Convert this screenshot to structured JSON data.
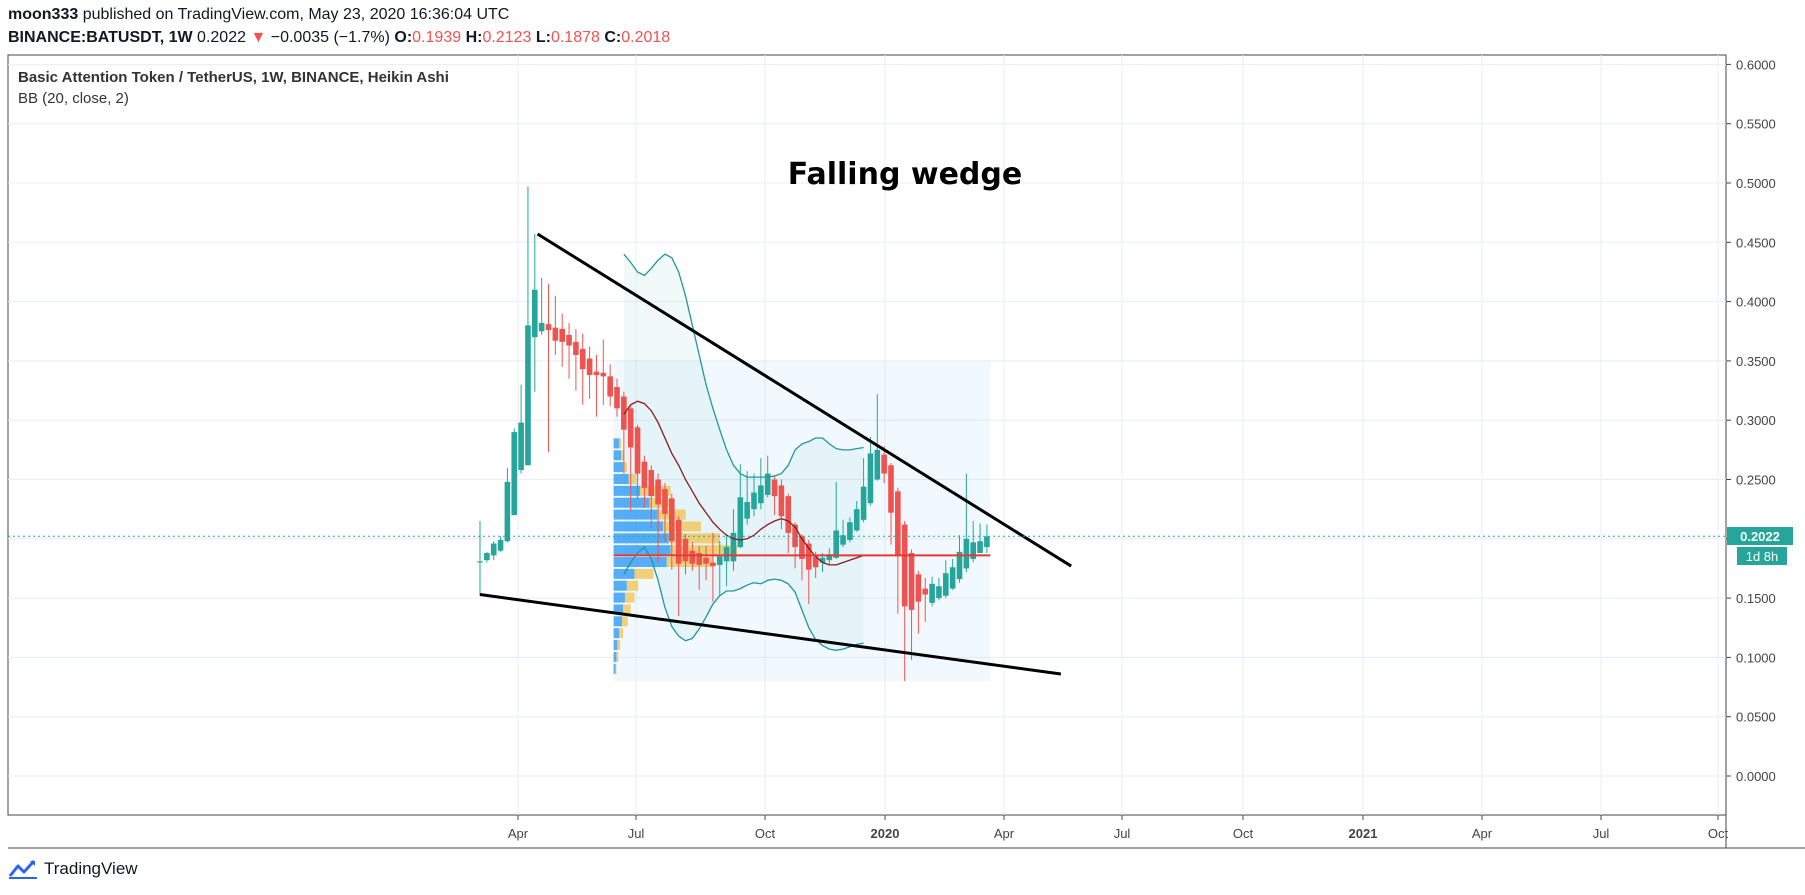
{
  "header": {
    "publisher": "moon333",
    "published_text": "published on TradingView.com, May 23, 2020 16:36:04 UTC",
    "symbol": "BINANCE:BATUSDT, 1W",
    "last": "0.2022",
    "change_arrow": "▼",
    "change": "−0.0035 (−1.7%)",
    "o_label": "O:",
    "o_value": "0.1939",
    "h_label": "H:",
    "h_value": "0.2123",
    "l_label": "L:",
    "l_value": "0.1878",
    "c_label": "C:",
    "c_value": "0.2018"
  },
  "legend": {
    "title": "Basic Attention Token / TetherUS, 1W, BINANCE, Heikin Ashi",
    "indicator": "BB (20, close, 2)"
  },
  "annotation": "Falling wedge",
  "price_label": "0.2022",
  "countdown_label": "1d 8h",
  "footer": {
    "brand": "TradingView",
    "logo_icon": "tradingview-logo-icon"
  },
  "colors": {
    "up": "#26a69a",
    "down": "#ef5350",
    "bb": "#2196a0",
    "basis": "#8b1a1a",
    "poc": "#e53935"
  },
  "chart_data": {
    "type": "candlestick",
    "title": "Basic Attention Token / TetherUS, 1W, BINANCE, Heikin Ashi",
    "ylim": [
      -0.03,
      0.61
    ],
    "y_ticks": [
      "0.6000",
      "0.5500",
      "0.5000",
      "0.4500",
      "0.4000",
      "0.3500",
      "0.3000",
      "0.2500",
      "0.2000",
      "0.1500",
      "0.1000",
      "0.0500",
      "0.0000"
    ],
    "x_ticks": [
      "Apr",
      "Jul",
      "Oct",
      "2020",
      "Apr",
      "Jul",
      "Oct",
      "2021",
      "Apr",
      "Jul",
      "Oct"
    ],
    "candles": [
      {
        "o": 0.18,
        "h": 0.215,
        "l": 0.152,
        "c": 0.181
      },
      {
        "o": 0.182,
        "h": 0.189,
        "l": 0.18,
        "c": 0.188
      },
      {
        "o": 0.186,
        "h": 0.198,
        "l": 0.182,
        "c": 0.196
      },
      {
        "o": 0.19,
        "h": 0.202,
        "l": 0.189,
        "c": 0.199
      },
      {
        "o": 0.198,
        "h": 0.26,
        "l": 0.197,
        "c": 0.248
      },
      {
        "o": 0.22,
        "h": 0.293,
        "l": 0.22,
        "c": 0.29
      },
      {
        "o": 0.258,
        "h": 0.33,
        "l": 0.255,
        "c": 0.298
      },
      {
        "o": 0.262,
        "h": 0.497,
        "l": 0.262,
        "c": 0.38
      },
      {
        "o": 0.37,
        "h": 0.457,
        "l": 0.324,
        "c": 0.41
      },
      {
        "o": 0.375,
        "h": 0.42,
        "l": 0.372,
        "c": 0.382
      },
      {
        "o": 0.381,
        "h": 0.415,
        "l": 0.273,
        "c": 0.376
      },
      {
        "o": 0.378,
        "h": 0.405,
        "l": 0.355,
        "c": 0.367
      },
      {
        "o": 0.377,
        "h": 0.39,
        "l": 0.345,
        "c": 0.366
      },
      {
        "o": 0.372,
        "h": 0.382,
        "l": 0.335,
        "c": 0.363
      },
      {
        "o": 0.366,
        "h": 0.377,
        "l": 0.325,
        "c": 0.355
      },
      {
        "o": 0.36,
        "h": 0.373,
        "l": 0.313,
        "c": 0.343
      },
      {
        "o": 0.352,
        "h": 0.362,
        "l": 0.318,
        "c": 0.338
      },
      {
        "o": 0.341,
        "h": 0.355,
        "l": 0.303,
        "c": 0.338
      },
      {
        "o": 0.34,
        "h": 0.368,
        "l": 0.313,
        "c": 0.337
      },
      {
        "o": 0.337,
        "h": 0.347,
        "l": 0.312,
        "c": 0.32
      },
      {
        "o": 0.328,
        "h": 0.335,
        "l": 0.303,
        "c": 0.31
      },
      {
        "o": 0.32,
        "h": 0.324,
        "l": 0.255,
        "c": 0.292
      },
      {
        "o": 0.31,
        "h": 0.312,
        "l": 0.223,
        "c": 0.277
      },
      {
        "o": 0.294,
        "h": 0.296,
        "l": 0.234,
        "c": 0.255
      },
      {
        "o": 0.265,
        "h": 0.27,
        "l": 0.226,
        "c": 0.243
      },
      {
        "o": 0.258,
        "h": 0.262,
        "l": 0.209,
        "c": 0.236
      },
      {
        "o": 0.25,
        "h": 0.255,
        "l": 0.18,
        "c": 0.229
      },
      {
        "o": 0.242,
        "h": 0.247,
        "l": 0.198,
        "c": 0.221
      },
      {
        "o": 0.234,
        "h": 0.238,
        "l": 0.174,
        "c": 0.198
      },
      {
        "o": 0.216,
        "h": 0.219,
        "l": 0.135,
        "c": 0.179
      },
      {
        "o": 0.2,
        "h": 0.204,
        "l": 0.17,
        "c": 0.181
      },
      {
        "o": 0.19,
        "h": 0.197,
        "l": 0.173,
        "c": 0.179
      },
      {
        "o": 0.188,
        "h": 0.194,
        "l": 0.157,
        "c": 0.178
      },
      {
        "o": 0.184,
        "h": 0.194,
        "l": 0.165,
        "c": 0.179
      },
      {
        "o": 0.18,
        "h": 0.205,
        "l": 0.147,
        "c": 0.177
      },
      {
        "o": 0.178,
        "h": 0.198,
        "l": 0.152,
        "c": 0.185
      },
      {
        "o": 0.181,
        "h": 0.204,
        "l": 0.16,
        "c": 0.193
      },
      {
        "o": 0.181,
        "h": 0.225,
        "l": 0.173,
        "c": 0.205
      },
      {
        "o": 0.193,
        "h": 0.263,
        "l": 0.192,
        "c": 0.235
      },
      {
        "o": 0.217,
        "h": 0.257,
        "l": 0.212,
        "c": 0.231
      },
      {
        "o": 0.225,
        "h": 0.255,
        "l": 0.219,
        "c": 0.239
      },
      {
        "o": 0.23,
        "h": 0.268,
        "l": 0.225,
        "c": 0.245
      },
      {
        "o": 0.237,
        "h": 0.27,
        "l": 0.235,
        "c": 0.255
      },
      {
        "o": 0.25,
        "h": 0.253,
        "l": 0.22,
        "c": 0.236
      },
      {
        "o": 0.245,
        "h": 0.25,
        "l": 0.208,
        "c": 0.219
      },
      {
        "o": 0.236,
        "h": 0.238,
        "l": 0.188,
        "c": 0.205
      },
      {
        "o": 0.212,
        "h": 0.214,
        "l": 0.175,
        "c": 0.193
      },
      {
        "o": 0.202,
        "h": 0.204,
        "l": 0.165,
        "c": 0.183
      },
      {
        "o": 0.196,
        "h": 0.199,
        "l": 0.145,
        "c": 0.174
      },
      {
        "o": 0.185,
        "h": 0.189,
        "l": 0.167,
        "c": 0.176
      },
      {
        "o": 0.18,
        "h": 0.188,
        "l": 0.172,
        "c": 0.184
      },
      {
        "o": 0.182,
        "h": 0.192,
        "l": 0.178,
        "c": 0.187
      },
      {
        "o": 0.184,
        "h": 0.248,
        "l": 0.183,
        "c": 0.207
      },
      {
        "o": 0.195,
        "h": 0.216,
        "l": 0.193,
        "c": 0.203
      },
      {
        "o": 0.199,
        "h": 0.218,
        "l": 0.197,
        "c": 0.214
      },
      {
        "o": 0.207,
        "h": 0.232,
        "l": 0.206,
        "c": 0.225
      },
      {
        "o": 0.216,
        "h": 0.268,
        "l": 0.214,
        "c": 0.244
      },
      {
        "o": 0.23,
        "h": 0.286,
        "l": 0.228,
        "c": 0.272
      },
      {
        "o": 0.25,
        "h": 0.322,
        "l": 0.249,
        "c": 0.275
      },
      {
        "o": 0.271,
        "h": 0.278,
        "l": 0.247,
        "c": 0.255
      },
      {
        "o": 0.262,
        "h": 0.264,
        "l": 0.195,
        "c": 0.222
      },
      {
        "o": 0.24,
        "h": 0.243,
        "l": 0.137,
        "c": 0.186
      },
      {
        "o": 0.212,
        "h": 0.215,
        "l": 0.08,
        "c": 0.143
      },
      {
        "o": 0.188,
        "h": 0.191,
        "l": 0.098,
        "c": 0.14
      },
      {
        "o": 0.17,
        "h": 0.173,
        "l": 0.12,
        "c": 0.147
      },
      {
        "o": 0.158,
        "h": 0.167,
        "l": 0.13,
        "c": 0.153
      },
      {
        "o": 0.146,
        "h": 0.168,
        "l": 0.143,
        "c": 0.162
      },
      {
        "o": 0.15,
        "h": 0.167,
        "l": 0.148,
        "c": 0.16
      },
      {
        "o": 0.152,
        "h": 0.182,
        "l": 0.15,
        "c": 0.171
      },
      {
        "o": 0.158,
        "h": 0.183,
        "l": 0.157,
        "c": 0.176
      },
      {
        "o": 0.166,
        "h": 0.203,
        "l": 0.163,
        "c": 0.189
      },
      {
        "o": 0.175,
        "h": 0.255,
        "l": 0.172,
        "c": 0.2
      },
      {
        "o": 0.183,
        "h": 0.215,
        "l": 0.18,
        "c": 0.197
      },
      {
        "o": 0.188,
        "h": 0.213,
        "l": 0.188,
        "c": 0.198
      },
      {
        "o": 0.193,
        "h": 0.212,
        "l": 0.188,
        "c": 0.202
      }
    ],
    "bb_upper": [
      0.44,
      0.433,
      0.425,
      0.422,
      0.428,
      0.435,
      0.44,
      0.437,
      0.425,
      0.405,
      0.38,
      0.355,
      0.33,
      0.31,
      0.292,
      0.275,
      0.262,
      0.255,
      0.252,
      0.252,
      0.252,
      0.252,
      0.253,
      0.255,
      0.262,
      0.275,
      0.28,
      0.282,
      0.285,
      0.285,
      0.28,
      0.276,
      0.275,
      0.275,
      0.276,
      0.277
    ],
    "bb_upper_start": 21,
    "bb_basis": [
      0.305,
      0.313,
      0.316,
      0.314,
      0.308,
      0.298,
      0.285,
      0.272,
      0.262,
      0.25,
      0.24,
      0.23,
      0.222,
      0.214,
      0.208,
      0.203,
      0.2,
      0.199,
      0.2,
      0.203,
      0.208,
      0.212,
      0.215,
      0.217,
      0.215,
      0.21,
      0.2,
      0.192,
      0.185,
      0.18,
      0.178,
      0.178,
      0.18,
      0.182,
      0.184,
      0.186
    ],
    "bb_lower": [
      0.17,
      0.18,
      0.188,
      0.193,
      0.183,
      0.165,
      0.142,
      0.126,
      0.118,
      0.114,
      0.116,
      0.124,
      0.134,
      0.145,
      0.152,
      0.156,
      0.156,
      0.158,
      0.161,
      0.163,
      0.162,
      0.165,
      0.166,
      0.165,
      0.162,
      0.155,
      0.14,
      0.125,
      0.115,
      0.11,
      0.107,
      0.106,
      0.107,
      0.109,
      0.111,
      0.112
    ],
    "bb_plot_start": 21,
    "wedge_upper": [
      {
        "i": 8.4,
        "p": 0.457
      },
      {
        "i": 86.3,
        "p": 0.177
      }
    ],
    "wedge_lower": [
      {
        "i": 0,
        "p": 0.153
      },
      {
        "i": 84.8,
        "p": 0.086
      }
    ],
    "poc_price": 0.186,
    "vp_range": {
      "i0": 19.5,
      "i1": 74.5,
      "p0": 0.08,
      "p1": 0.35
    },
    "volume_profile": [
      {
        "p": 0.24,
        "buy": 28,
        "sell": 32
      },
      {
        "p": 0.23,
        "buy": 38,
        "sell": 26
      },
      {
        "p": 0.22,
        "buy": 46,
        "sell": 30
      },
      {
        "p": 0.21,
        "buy": 52,
        "sell": 40
      },
      {
        "p": 0.2,
        "buy": 58,
        "sell": 54
      },
      {
        "p": 0.19,
        "buy": 60,
        "sell": 70
      },
      {
        "p": 0.18,
        "buy": 56,
        "sell": 48
      },
      {
        "p": 0.17,
        "buy": 22,
        "sell": 20
      },
      {
        "p": 0.16,
        "buy": 14,
        "sell": 12
      },
      {
        "p": 0.15,
        "buy": 12,
        "sell": 10
      },
      {
        "p": 0.14,
        "buy": 10,
        "sell": 8
      },
      {
        "p": 0.13,
        "buy": 9,
        "sell": 6
      },
      {
        "p": 0.25,
        "buy": 16,
        "sell": 8
      },
      {
        "p": 0.26,
        "buy": 10,
        "sell": 4
      },
      {
        "p": 0.27,
        "buy": 8,
        "sell": 3
      },
      {
        "p": 0.28,
        "buy": 6,
        "sell": 2
      },
      {
        "p": 0.12,
        "buy": 6,
        "sell": 4
      },
      {
        "p": 0.11,
        "buy": 4,
        "sell": 3
      },
      {
        "p": 0.1,
        "buy": 3,
        "sell": 2
      },
      {
        "p": 0.09,
        "buy": 2,
        "sell": 1
      }
    ]
  }
}
